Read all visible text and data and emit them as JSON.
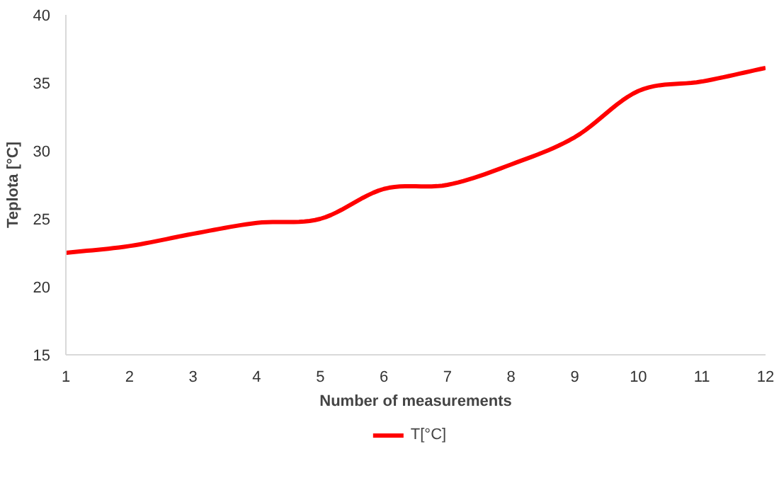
{
  "chart_data": {
    "type": "line",
    "xlabel": "Number of measurements",
    "ylabel": "Teplota [°C]",
    "x": [
      1,
      2,
      3,
      4,
      5,
      6,
      7,
      8,
      9,
      10,
      11,
      12
    ],
    "series": [
      {
        "name": "T[°C]",
        "color": "#ff0000",
        "values": [
          22.5,
          23.0,
          23.9,
          24.7,
          25.0,
          27.2,
          27.5,
          29.0,
          31.0,
          34.4,
          35.1,
          36.1
        ]
      }
    ],
    "xlim": [
      1,
      12
    ],
    "xticks": [
      1,
      2,
      3,
      4,
      5,
      6,
      7,
      8,
      9,
      10,
      11,
      12
    ],
    "ylim": [
      15,
      40
    ],
    "yticks": [
      15,
      20,
      25,
      30,
      35,
      40
    ],
    "grid": false,
    "legend": "bottom",
    "line_style": "solid",
    "marker": "none"
  }
}
